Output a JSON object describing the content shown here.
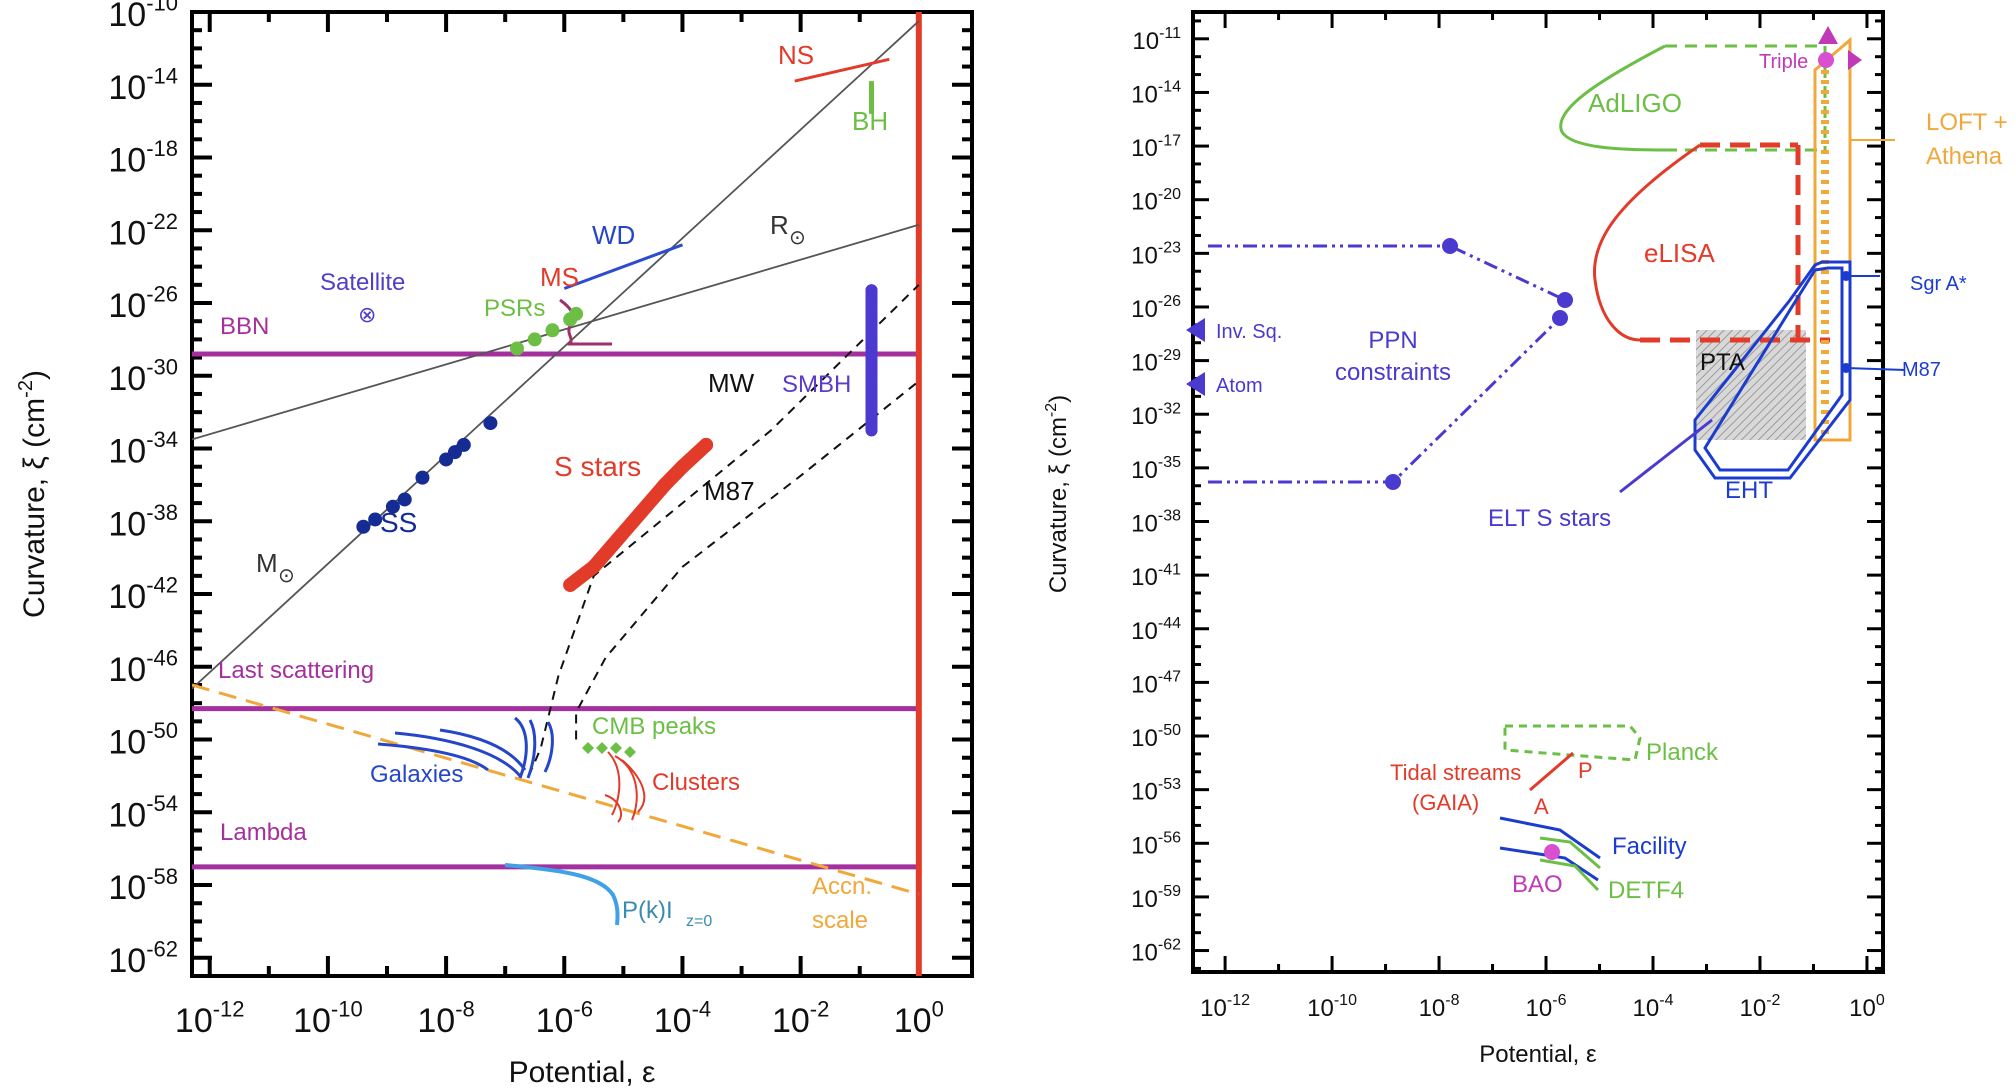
{
  "chart_data": [
    {
      "type": "line",
      "xlabel": "Potential, ε",
      "ylabel": "Curvature, ξ (cm",
      "ylabel_exp": "-2",
      "ylabel_close": ")",
      "x_scale": "log",
      "y_scale": "log",
      "xlim": [
        -12.3,
        0.9
      ],
      "ylim": [
        -63,
        -10
      ],
      "x_tick_exponents": [
        -12,
        -10,
        -8,
        -6,
        -4,
        -2,
        0
      ],
      "y_tick_exponents": [
        -10,
        -14,
        -18,
        -22,
        -26,
        -30,
        -34,
        -38,
        -42,
        -46,
        -50,
        -54,
        -58,
        -62
      ],
      "tick_base": "10",
      "grid": false,
      "colors": {
        "purple": "#a4309f",
        "navy": "#142c94",
        "red": "#e23b2a",
        "green": "#6cbf44",
        "gray": "#555555",
        "orange": "#f0a83a",
        "blue": "#2c4bd0",
        "violet": "#6a3bd6",
        "lightblue": "#3fa2e6",
        "teal": "#3a8bb0"
      },
      "hlines": [
        {
          "label": "BBN",
          "y": -28.8
        },
        {
          "label": "Last scattering",
          "y": -48.3
        },
        {
          "label": "Lambda",
          "y": -57.0
        }
      ],
      "vline_x": 0,
      "series": [
        {
          "name": "M⊙",
          "x": [
            -12.3,
            0
          ],
          "y": [
            -47.2,
            -10.5
          ]
        },
        {
          "name": "R⊙",
          "x": [
            -12.3,
            0
          ],
          "y": [
            -33.5,
            -21.7
          ]
        },
        {
          "name": "MW",
          "x": [
            -6.6,
            -6.4,
            -6.1,
            -5.5,
            -4.0,
            -2.5,
            0
          ],
          "y": [
            -52.0,
            -50.5,
            -46.5,
            -41.0,
            -37.0,
            -33.0,
            -25.0
          ]
        },
        {
          "name": "M87",
          "x": [
            -5.8,
            -5.8,
            -5.3,
            -4.0,
            -2.0,
            0
          ],
          "y": [
            -50.0,
            -48.5,
            -45.5,
            -40.5,
            -35.5,
            -30.3
          ]
        },
        {
          "name": "Accn. scale",
          "x": [
            -12.3,
            0
          ],
          "y": [
            -47.0,
            -58.5
          ]
        },
        {
          "name": "SS",
          "x": [
            -9.4,
            -9.2,
            -8.9,
            -8.7,
            -8.4,
            -8.0,
            -7.85,
            -7.7,
            -7.25
          ],
          "y": [
            -38.3,
            -37.9,
            -37.2,
            -36.8,
            -35.6,
            -34.6,
            -34.2,
            -33.8,
            -32.6
          ]
        },
        {
          "name": "S stars",
          "x": [
            -5.9,
            -5.5,
            -5.1,
            -4.7,
            -4.3,
            -4.0,
            -3.6
          ],
          "y": [
            -41.5,
            -40.5,
            -39.0,
            -37.5,
            -36.0,
            -35.0,
            -33.8
          ]
        },
        {
          "name": "SMBH",
          "x": [
            -0.8,
            -0.8,
            -0.8,
            -0.8,
            -0.8,
            -0.8,
            -0.8,
            -0.8,
            -0.8,
            -0.8,
            -0.8,
            -0.8,
            -0.8,
            -0.8,
            -0.8
          ],
          "y": [
            -25.3,
            -26.0,
            -26.7,
            -27.3,
            -27.9,
            -28.5,
            -29.0,
            -29.5,
            -30.0,
            -30.5,
            -31.0,
            -31.5,
            -32.0,
            -32.5,
            -33.0
          ]
        },
        {
          "name": "PSRs",
          "x": [
            -6.8,
            -6.5,
            -6.2,
            -5.9,
            -5.8
          ],
          "y": [
            -28.5,
            -28.0,
            -27.5,
            -26.9,
            -26.6
          ]
        },
        {
          "name": "CMB peaks",
          "x": [
            -5.9,
            -5.7,
            -5.5,
            -5.1
          ],
          "y": [
            -51.2,
            -51.1,
            -51.3,
            -51.6
          ]
        },
        {
          "name": "NS",
          "x": [
            -2.1,
            -0.5
          ],
          "y": [
            -13.8,
            -12.6
          ]
        },
        {
          "name": "BH",
          "x": [
            -0.8,
            -0.8
          ],
          "y": [
            -13.8,
            -15.6
          ]
        },
        {
          "name": "WD",
          "x": [
            -6.0,
            -4.0
          ],
          "y": [
            -25.2,
            -22.8
          ]
        }
      ],
      "labels": {
        "ns": "NS",
        "bh": "BH",
        "wd": "WD",
        "r_sun": "R",
        "ms": "MS",
        "satellite": "Satellite",
        "satellite_symbol": "⊗",
        "psrs": "PSRs",
        "bbn": "BBN",
        "mw": "MW",
        "smbh": "SMBH",
        "s_stars": "S stars",
        "m87": "M87",
        "ss": "SS",
        "m_sun": "M",
        "sun_symbol": "⊙",
        "last_scattering": "Last scattering",
        "cmb_peaks": "CMB peaks",
        "galaxies": "Galaxies",
        "clusters": "Clusters",
        "lambda": "Lambda",
        "accn_1": "Accn.",
        "accn_2": "scale",
        "pk": "P(k)I",
        "pk_sub": "z=0"
      }
    },
    {
      "type": "area",
      "xlabel": "Potential, ε",
      "ylabel": "Curvature, ξ (cm",
      "ylabel_exp": "-2",
      "ylabel_close": ")",
      "x_scale": "log",
      "y_scale": "log",
      "xlim": [
        -12.6,
        0.3
      ],
      "ylim": [
        -63.2,
        -9.5
      ],
      "x_tick_exponents": [
        -12,
        -10,
        -8,
        -6,
        -4,
        -2,
        0
      ],
      "y_tick_exponents": [
        -11,
        -14,
        -17,
        -20,
        -23,
        -26,
        -29,
        -32,
        -35,
        -38,
        -41,
        -44,
        -47,
        -50,
        -53,
        -56,
        -59,
        -62
      ],
      "tick_base": "10",
      "grid": false,
      "regions": [
        {
          "name": "AdLIGO",
          "color": "#6cbf44"
        },
        {
          "name": "eLISA",
          "color": "#e23b2a"
        },
        {
          "name": "PTA",
          "color": "#999999"
        },
        {
          "name": "EHT",
          "color": "#1c3ccf"
        },
        {
          "name": "LOFT + Athena",
          "color": "#f0a83a"
        },
        {
          "name": "PPN constraints",
          "color": "#4a3ad0"
        },
        {
          "name": "Planck",
          "color": "#6cbf44"
        },
        {
          "name": "Tidal streams (GAIA)",
          "color": "#e23b2a"
        },
        {
          "name": "Facility",
          "color": "#1c3ccf"
        },
        {
          "name": "DETF4",
          "color": "#6cbf44"
        },
        {
          "name": "BAO",
          "color": "#d84fd0"
        }
      ],
      "points": [
        {
          "name": "Triple",
          "x": -0.7,
          "y": -12.0
        },
        {
          "name": "Sgr A*",
          "x": -0.5,
          "y": -25.0
        },
        {
          "name": "M87",
          "x": -0.5,
          "y": -29.0
        },
        {
          "name": "BAO",
          "x": -6.0,
          "y": -57.0
        }
      ],
      "labels": {
        "triple": "Triple",
        "loft_1": "LOFT +",
        "loft_2": "Athena",
        "adligo": "AdLIGO",
        "elisa": "eLISA",
        "sgra": "Sgr A*",
        "m87": "M87",
        "pta": "PTA",
        "eht": "EHT",
        "ppn_1": "PPN",
        "ppn_2": "constraints",
        "inv_sq": "Inv. Sq.",
        "atom": "Atom",
        "elt": "ELT S stars",
        "planck": "Planck",
        "tidal_1": "Tidal streams",
        "tidal_2": "(GAIA)",
        "tidal_p": "P",
        "tidal_a": "A",
        "facility": "Facility",
        "bao": "BAO",
        "detf4": "DETF4"
      }
    }
  ]
}
